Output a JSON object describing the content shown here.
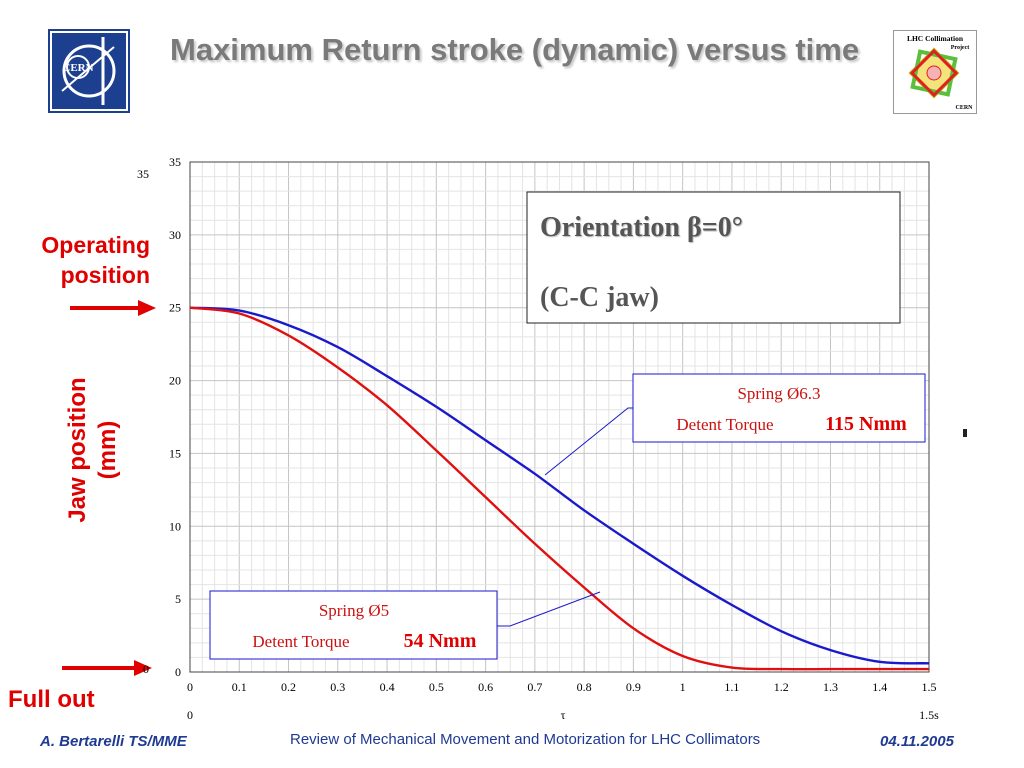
{
  "title": "Maximum Return stroke (dynamic) versus time",
  "side_labels": {
    "operating": "Operating position",
    "full_out": "Full out",
    "ylabel": "Jaw position (mm)"
  },
  "chart_data": {
    "type": "line",
    "title": "",
    "xlabel": "τ",
    "ylabel": "Jaw position (mm)",
    "xlim": [
      0,
      1.5
    ],
    "ylim": [
      0,
      35
    ],
    "grid": true,
    "x_ticks": [
      "0",
      "0.1",
      "0.2",
      "0.3",
      "0.4",
      "0.5",
      "0.6",
      "0.7",
      "0.8",
      "0.9",
      "1",
      "1.1",
      "1.2",
      "1.3",
      "1.4",
      "1.5"
    ],
    "y_ticks": [
      "0",
      "5",
      "10",
      "15",
      "20",
      "25",
      "30",
      "35"
    ],
    "extra_labels": {
      "y_top_left": "35",
      "y_bottom_left": "0",
      "x_start": "0",
      "x_end": "1.5s"
    },
    "x": [
      0,
      0.1,
      0.2,
      0.3,
      0.4,
      0.5,
      0.6,
      0.7,
      0.8,
      0.9,
      1.0,
      1.1,
      1.2,
      1.3,
      1.4,
      1.5
    ],
    "series": [
      {
        "color": "#1a1acc",
        "values": [
          25.0,
          24.8,
          23.8,
          22.3,
          20.3,
          18.2,
          15.9,
          13.6,
          11.1,
          8.8,
          6.6,
          4.6,
          2.8,
          1.5,
          0.7,
          0.6
        ]
      },
      {
        "color": "#e01010",
        "values": [
          25.0,
          24.6,
          23.1,
          20.9,
          18.3,
          15.2,
          12.0,
          8.8,
          5.8,
          3.0,
          1.1,
          0.3,
          0.2,
          0.2,
          0.2,
          0.2
        ]
      }
    ],
    "annotations": {
      "orientation": {
        "line1": "Orientation β=0°",
        "line2": "(C-C jaw)"
      },
      "blue": {
        "line1": "Spring Ø6.3",
        "torque_label": "Detent Torque",
        "torque_value": "115 Nmm"
      },
      "red": {
        "line1": "Spring Ø5",
        "torque_label": "Detent Torque",
        "torque_value": "54 Nmm"
      }
    }
  },
  "footer": {
    "author": "A. Bertarelli TS/MME",
    "subject": "Review of Mechanical Movement and Motorization for LHC Collimators",
    "date": "04.11.2005"
  },
  "logos": {
    "cern_text": "CERN",
    "lhc_top": "LHC Collimation",
    "lhc_sub": "Project",
    "lhc_bottom": "CERN",
    "colors": {
      "cern_blue": "#1d3f8f",
      "red": "#e00000",
      "accent_blue": "#1f3a93"
    }
  }
}
